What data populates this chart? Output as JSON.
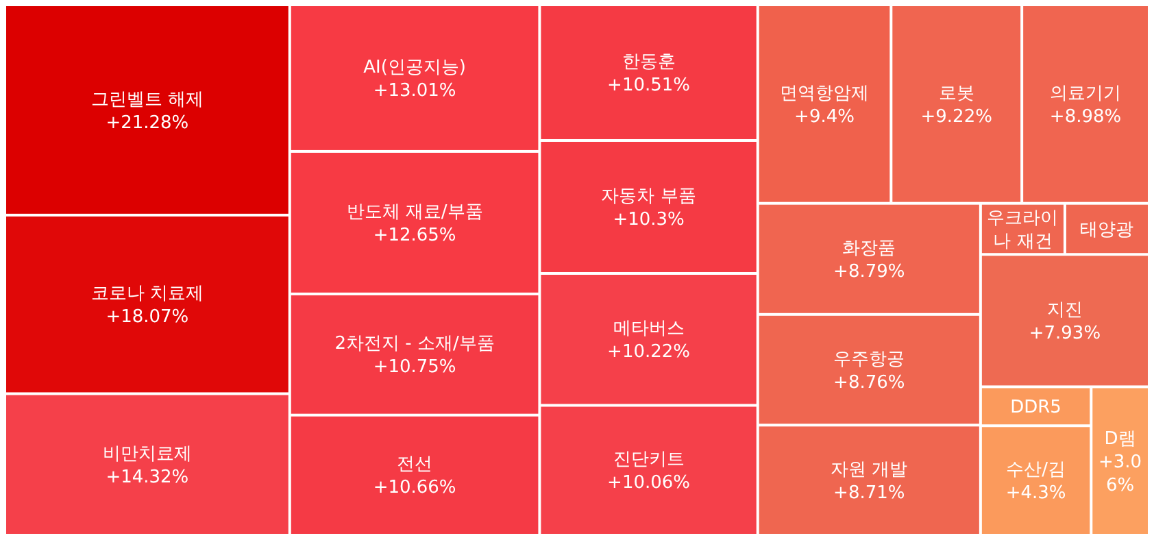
{
  "chart_data": {
    "type": "other",
    "categories": [
      "그린벨트 해제",
      "코로나 치료제",
      "비만치료제",
      "AI(인공지능)",
      "반도체 재료/부품",
      "2차전지 - 소재/부품",
      "전선",
      "한동훈",
      "자동차 부품",
      "메타버스",
      "진단키트",
      "면역항암제",
      "로봇",
      "의료기기",
      "화장품",
      "우주항공",
      "자원 개발",
      "우크라이나 재건",
      "태양광",
      "지진",
      "DDR5",
      "수산/김",
      "D램"
    ],
    "values": [
      21.28,
      18.07,
      14.32,
      13.01,
      12.65,
      10.75,
      10.66,
      10.51,
      10.3,
      10.22,
      10.06,
      9.4,
      9.22,
      8.98,
      8.79,
      8.76,
      8.71,
      null,
      null,
      7.93,
      null,
      4.3,
      3.06
    ],
    "value_labels": [
      "+21.28%",
      "+18.07%",
      "+14.32%",
      "+13.01%",
      "+12.65%",
      "+10.75%",
      "+10.66%",
      "+10.51%",
      "+10.3%",
      "+10.22%",
      "+10.06%",
      "+9.4%",
      "+9.22%",
      "+8.98%",
      "+8.79%",
      "+8.76%",
      "+8.71%",
      null,
      null,
      "+7.93%",
      null,
      "+4.3%",
      "+3.06%"
    ],
    "colors": [
      "#dc0000",
      "#e00808",
      "#f5404a",
      "#f73a44",
      "#f73a44",
      "#f53a45",
      "#f53a45",
      "#f53a44",
      "#f53a44",
      "#f5404a",
      "#f5404a",
      "#f0614c",
      "#f06550",
      "#f06550",
      "#f06550",
      "#ef6650",
      "#ef6650",
      "#ef6650",
      "#ef6650",
      "#ee6a52",
      "#fb9a5c",
      "#fb9a5c",
      "#fca060"
    ]
  }
}
